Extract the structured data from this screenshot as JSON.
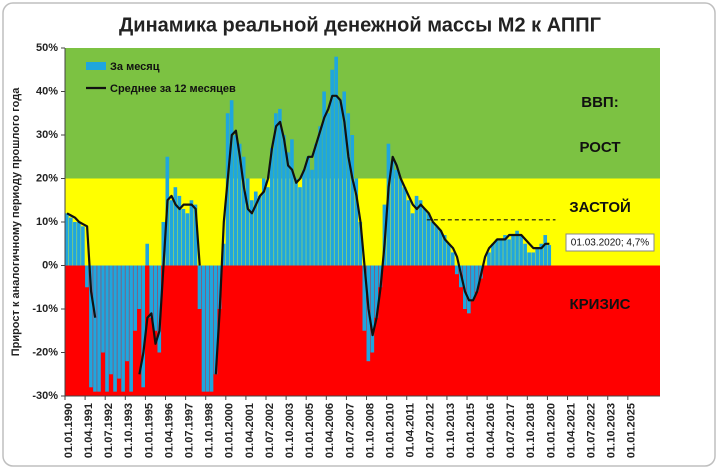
{
  "chart_data": {
    "type": "bar+line",
    "title": "Динамика реальной денежной массы М2 к АППГ",
    "y_label": "Прирост к аналогичному периоду прошлого года",
    "xlim": [
      1990,
      2027
    ],
    "ylim": [
      -30,
      50
    ],
    "yticks": [
      {
        "value": 50,
        "label": "50%"
      },
      {
        "value": 40,
        "label": "40%"
      },
      {
        "value": 30,
        "label": "30%"
      },
      {
        "value": 20,
        "label": "20%"
      },
      {
        "value": 10,
        "label": "10%"
      },
      {
        "value": 0,
        "label": "0%"
      },
      {
        "value": -10,
        "label": "-10%"
      },
      {
        "value": -20,
        "label": "-20%"
      },
      {
        "value": -30,
        "label": "-30%"
      }
    ],
    "xticks": [
      {
        "value": 1990,
        "label": "01.01.1990"
      },
      {
        "value": 1991.25,
        "label": "01.04.1991"
      },
      {
        "value": 1992.5,
        "label": "01.07.1992"
      },
      {
        "value": 1993.75,
        "label": "01.10.1993"
      },
      {
        "value": 1995,
        "label": "01.01.1995"
      },
      {
        "value": 1996.25,
        "label": "01.04.1996"
      },
      {
        "value": 1997.5,
        "label": "01.07.1997"
      },
      {
        "value": 1998.75,
        "label": "01.10.1998"
      },
      {
        "value": 2000,
        "label": "01.01.2000"
      },
      {
        "value": 2001.25,
        "label": "01.04.2001"
      },
      {
        "value": 2002.5,
        "label": "01.07.2002"
      },
      {
        "value": 2003.75,
        "label": "01.10.2003"
      },
      {
        "value": 2005,
        "label": "01.01.2005"
      },
      {
        "value": 2006.25,
        "label": "01.04.2006"
      },
      {
        "value": 2007.5,
        "label": "01.07.2007"
      },
      {
        "value": 2008.75,
        "label": "01.10.2008"
      },
      {
        "value": 2010,
        "label": "01.01.2010"
      },
      {
        "value": 2011.25,
        "label": "01.04.2011"
      },
      {
        "value": 2012.5,
        "label": "01.07.2012"
      },
      {
        "value": 2013.75,
        "label": "01.10.2013"
      },
      {
        "value": 2015,
        "label": "01.01.2015"
      },
      {
        "value": 2016.25,
        "label": "01.04.2016"
      },
      {
        "value": 2017.5,
        "label": "01.07.2017"
      },
      {
        "value": 2018.75,
        "label": "01.10.2018"
      },
      {
        "value": 2020,
        "label": "01.01.2020"
      },
      {
        "value": 2021.25,
        "label": "01.04.2021"
      },
      {
        "value": 2022.5,
        "label": "01.07.2022"
      },
      {
        "value": 2023.75,
        "label": "01.10.2023"
      },
      {
        "value": 2025,
        "label": "01.01.2025"
      }
    ],
    "zones": [
      {
        "from": 20,
        "to": 50,
        "color": "#7cc242"
      },
      {
        "from": 0,
        "to": 20,
        "color": "#ffff00"
      },
      {
        "from": -30,
        "to": 0,
        "color": "#ff0000"
      }
    ],
    "zone_labels": [
      "ВВП:",
      "РОСТ",
      "ЗАСТОЙ",
      "КРИЗИС"
    ],
    "reference_line": {
      "y": 10.5,
      "x": [
        2012.5,
        2020.5
      ]
    },
    "annotation": "01.03.2020; 4,7%",
    "x": [
      1990,
      1990.25,
      1990.5,
      1990.75,
      1991,
      1991.25,
      1991.5,
      1991.75,
      1992,
      1992.25,
      1992.5,
      1992.75,
      1993,
      1993.25,
      1993.5,
      1993.75,
      1994,
      1994.25,
      1994.5,
      1994.75,
      1995,
      1995.25,
      1995.5,
      1995.75,
      1996,
      1996.25,
      1996.5,
      1996.75,
      1997,
      1997.25,
      1997.5,
      1997.75,
      1998,
      1998.25,
      1998.5,
      1998.75,
      1999,
      1999.25,
      1999.5,
      1999.75,
      2000,
      2000.25,
      2000.5,
      2000.75,
      2001,
      2001.25,
      2001.5,
      2001.75,
      2002,
      2002.25,
      2002.5,
      2002.75,
      2003,
      2003.25,
      2003.5,
      2003.75,
      2004,
      2004.25,
      2004.5,
      2004.75,
      2005,
      2005.25,
      2005.5,
      2005.75,
      2006,
      2006.25,
      2006.5,
      2006.75,
      2007,
      2007.25,
      2007.5,
      2007.75,
      2008,
      2008.25,
      2008.5,
      2008.75,
      2009,
      2009.25,
      2009.5,
      2009.75,
      2010,
      2010.25,
      2010.5,
      2010.75,
      2011,
      2011.25,
      2011.5,
      2011.75,
      2012,
      2012.25,
      2012.5,
      2012.75,
      2013,
      2013.25,
      2013.5,
      2013.75,
      2014,
      2014.25,
      2014.5,
      2014.75,
      2015,
      2015.25,
      2015.5,
      2015.75,
      2016,
      2016.25,
      2016.5,
      2016.75,
      2017,
      2017.25,
      2017.5,
      2017.75,
      2018,
      2018.25,
      2018.5,
      2018.75,
      2019,
      2019.25,
      2019.5,
      2019.75,
      2020
    ],
    "series": [
      {
        "name": "За месяц",
        "color": "#1fa6de",
        "values": [
          12,
          11,
          10,
          10,
          9,
          -5,
          -28,
          -29,
          -29,
          -20,
          -29,
          -25,
          -29,
          -26,
          -29,
          -22,
          -29,
          -15,
          -10,
          -28,
          5,
          -12,
          -15,
          -20,
          10,
          25,
          15,
          18,
          16,
          13,
          12,
          15,
          14,
          -10,
          -29,
          -29,
          -29,
          -25,
          -10,
          5,
          35,
          38,
          30,
          28,
          25,
          20,
          15,
          17,
          16,
          20,
          18,
          27,
          35,
          36,
          30,
          26,
          29,
          20,
          18,
          22,
          25,
          22,
          28,
          32,
          40,
          35,
          45,
          48,
          38,
          40,
          35,
          30,
          20,
          10,
          -15,
          -22,
          -20,
          -12,
          -5,
          14,
          28,
          24,
          22,
          20,
          18,
          15,
          12,
          16,
          15,
          13,
          12,
          10,
          9,
          8,
          7,
          5,
          3,
          -2,
          -5,
          -10,
          -11,
          -8,
          -6,
          -3,
          0,
          3,
          5,
          6,
          6,
          7,
          6,
          7,
          8,
          7,
          5,
          3,
          3,
          4,
          5,
          7,
          4.7
        ]
      },
      {
        "name": "Среднее за 12 месяцев",
        "color": "#111111",
        "values": [
          12,
          11.5,
          11,
          10,
          9.5,
          9,
          -6,
          -12,
          null,
          null,
          null,
          null,
          null,
          null,
          null,
          null,
          null,
          null,
          -25,
          -20,
          -12,
          -11,
          -18,
          -15,
          0,
          15,
          16,
          14,
          13,
          14,
          14,
          14,
          13,
          0,
          null,
          null,
          null,
          -25,
          -10,
          10,
          20,
          30,
          31,
          25,
          18,
          13,
          12,
          14,
          16,
          17,
          20,
          27,
          32,
          33,
          29,
          23,
          22,
          19,
          20,
          22,
          25,
          25,
          28,
          31,
          34,
          36,
          39,
          39,
          38,
          33,
          25,
          20,
          16,
          10,
          0,
          -10,
          -16,
          -12,
          -5,
          5,
          18,
          25,
          23,
          20,
          18,
          16,
          14,
          13,
          14,
          13,
          12,
          10,
          9,
          8,
          6,
          5,
          4,
          2,
          -2,
          -6,
          -8,
          -8,
          -6,
          -2,
          2,
          4,
          5,
          6,
          6,
          6,
          7,
          7,
          7,
          7,
          6,
          5,
          4,
          4,
          4,
          5,
          5
        ]
      }
    ]
  }
}
